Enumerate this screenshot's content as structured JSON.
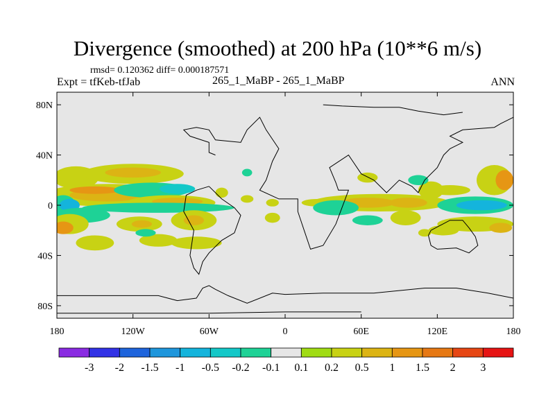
{
  "header": {
    "title": "Divergence (smoothed) at 200 hPa (10**6 m/s)",
    "stats": "rmsd= 0.120362 diff= 0.000187571",
    "expt": "Expt = tfKeb-tfJab",
    "case": "265_1_MaBP - 265_1_MaBP",
    "season": "ANN"
  },
  "chart_data": {
    "type": "heatmap",
    "background_color": "#e6e6e6",
    "xlim": [
      -180,
      180
    ],
    "ylim": [
      -90,
      90
    ],
    "x_ticks": [
      {
        "value": -180,
        "label": "180"
      },
      {
        "value": -120,
        "label": "120W"
      },
      {
        "value": -60,
        "label": "60W"
      },
      {
        "value": 0,
        "label": "0"
      },
      {
        "value": 60,
        "label": "60E"
      },
      {
        "value": 120,
        "label": "120E"
      },
      {
        "value": 180,
        "label": "180"
      }
    ],
    "y_ticks": [
      {
        "value": 80,
        "label": "80N"
      },
      {
        "value": 40,
        "label": "40N"
      },
      {
        "value": 0,
        "label": "0"
      },
      {
        "value": -40,
        "label": "40S"
      },
      {
        "value": -80,
        "label": "80S"
      }
    ],
    "colorbar": {
      "colors": [
        "#8a2be2",
        "#3232e6",
        "#1e64dc",
        "#1e96dc",
        "#14b4dc",
        "#14c8c8",
        "#1ed296",
        "#e6e6e6",
        "#a0dc14",
        "#c8d214",
        "#dcb414",
        "#e69614",
        "#e67814",
        "#e64614",
        "#e61414"
      ],
      "labels": [
        "-3",
        "-2",
        "-1.5",
        "-1",
        "-0.5",
        "-0.2",
        "-0.1",
        "0.1",
        "0.2",
        "0.5",
        "1",
        "1.5",
        "2",
        "3"
      ]
    },
    "regions": [
      {
        "lon": -165,
        "lat": 22,
        "w": 18,
        "h": 9,
        "level": "0.2"
      },
      {
        "lon": -120,
        "lat": 25,
        "w": 40,
        "h": 8,
        "level": "0.2"
      },
      {
        "lon": -120,
        "lat": 26,
        "w": 22,
        "h": 4,
        "level": "0.5"
      },
      {
        "lon": -140,
        "lat": 8,
        "w": 50,
        "h": 9,
        "level": "0.2"
      },
      {
        "lon": -140,
        "lat": 8,
        "w": 30,
        "h": 5,
        "level": "0.5"
      },
      {
        "lon": -150,
        "lat": 12,
        "w": 20,
        "h": 3,
        "level": "1"
      },
      {
        "lon": -105,
        "lat": 12,
        "w": 30,
        "h": 6,
        "level": "-0.1"
      },
      {
        "lon": -85,
        "lat": 13,
        "w": 14,
        "h": 4,
        "level": "-0.2"
      },
      {
        "lon": -175,
        "lat": 0,
        "w": 10,
        "h": 8,
        "level": "-0.1"
      },
      {
        "lon": -170,
        "lat": 0,
        "w": 8,
        "h": 5,
        "level": "-0.5"
      },
      {
        "lon": -90,
        "lat": 2,
        "w": 35,
        "h": 6,
        "level": "0.2"
      },
      {
        "lon": -85,
        "lat": 3,
        "w": 20,
        "h": 3,
        "level": "0.5"
      },
      {
        "lon": -100,
        "lat": -2,
        "w": 60,
        "h": 4,
        "level": "-0.1"
      },
      {
        "lon": -160,
        "lat": -8,
        "w": 22,
        "h": 6,
        "level": "-0.1"
      },
      {
        "lon": -170,
        "lat": -15,
        "w": 15,
        "h": 8,
        "level": "0.2"
      },
      {
        "lon": -175,
        "lat": -18,
        "w": 8,
        "h": 5,
        "level": "1"
      },
      {
        "lon": -115,
        "lat": -15,
        "w": 18,
        "h": 6,
        "level": "0.2"
      },
      {
        "lon": -113,
        "lat": -15,
        "w": 8,
        "h": 3,
        "level": "0.5"
      },
      {
        "lon": -72,
        "lat": -12,
        "w": 18,
        "h": 8,
        "level": "0.2"
      },
      {
        "lon": -72,
        "lat": -12,
        "w": 8,
        "h": 4,
        "level": "0.5"
      },
      {
        "lon": -150,
        "lat": -30,
        "w": 15,
        "h": 6,
        "level": "0.2"
      },
      {
        "lon": -100,
        "lat": -28,
        "w": 15,
        "h": 5,
        "level": "0.2"
      },
      {
        "lon": -70,
        "lat": -30,
        "w": 20,
        "h": 5,
        "level": "0.2"
      },
      {
        "lon": -110,
        "lat": -22,
        "w": 8,
        "h": 3,
        "level": "-0.1"
      },
      {
        "lon": -30,
        "lat": 26,
        "w": 4,
        "h": 3,
        "level": "-0.1"
      },
      {
        "lon": -50,
        "lat": 10,
        "w": 5,
        "h": 4,
        "level": "0.2"
      },
      {
        "lon": -30,
        "lat": 5,
        "w": 5,
        "h": 3,
        "level": "0.2"
      },
      {
        "lon": -10,
        "lat": 2,
        "w": 5,
        "h": 3,
        "level": "0.2"
      },
      {
        "lon": -10,
        "lat": -10,
        "w": 6,
        "h": 4,
        "level": "0.2"
      },
      {
        "lon": 25,
        "lat": 2,
        "w": 12,
        "h": 3,
        "level": "0.2"
      },
      {
        "lon": 75,
        "lat": 2,
        "w": 55,
        "h": 7,
        "level": "0.2"
      },
      {
        "lon": 65,
        "lat": 2,
        "w": 22,
        "h": 4,
        "level": "0.5"
      },
      {
        "lon": 97,
        "lat": 2,
        "w": 15,
        "h": 4,
        "level": "0.5"
      },
      {
        "lon": 40,
        "lat": -2,
        "w": 18,
        "h": 6,
        "level": "-0.1"
      },
      {
        "lon": 115,
        "lat": 12,
        "w": 10,
        "h": 7,
        "level": "0.2"
      },
      {
        "lon": 105,
        "lat": 20,
        "w": 8,
        "h": 4,
        "level": "-0.1"
      },
      {
        "lon": 65,
        "lat": 22,
        "w": 8,
        "h": 4,
        "level": "0.2"
      },
      {
        "lon": 95,
        "lat": -10,
        "w": 12,
        "h": 6,
        "level": "0.2"
      },
      {
        "lon": 65,
        "lat": -12,
        "w": 12,
        "h": 4,
        "level": "-0.1"
      },
      {
        "lon": 110,
        "lat": -22,
        "w": 5,
        "h": 3,
        "level": "0.2"
      },
      {
        "lon": 150,
        "lat": 0,
        "w": 30,
        "h": 7,
        "level": "-0.1"
      },
      {
        "lon": 155,
        "lat": 0,
        "w": 20,
        "h": 4,
        "level": "-0.5"
      },
      {
        "lon": 130,
        "lat": 12,
        "w": 16,
        "h": 4,
        "level": "0.2"
      },
      {
        "lon": 165,
        "lat": 20,
        "w": 14,
        "h": 12,
        "level": "0.2"
      },
      {
        "lon": 173,
        "lat": 20,
        "w": 7,
        "h": 8,
        "level": "1"
      },
      {
        "lon": 150,
        "lat": -15,
        "w": 30,
        "h": 6,
        "level": "0.2"
      },
      {
        "lon": 170,
        "lat": -18,
        "w": 9,
        "h": 4,
        "level": "0.5"
      },
      {
        "lon": 125,
        "lat": -20,
        "w": 12,
        "h": 4,
        "level": "0.2"
      }
    ],
    "coastlines": [
      [
        [
          -180,
          -72
        ],
        [
          -100,
          -72
        ],
        [
          -85,
          -76
        ],
        [
          -70,
          -74
        ],
        [
          -65,
          -66
        ],
        [
          -60,
          -64
        ],
        [
          -55,
          -67
        ],
        [
          -45,
          -72
        ],
        [
          -30,
          -78
        ],
        [
          -10,
          -70
        ],
        [
          0,
          -71
        ],
        [
          30,
          -70
        ],
        [
          70,
          -70
        ],
        [
          110,
          -66
        ],
        [
          135,
          -66
        ],
        [
          160,
          -70
        ],
        [
          170,
          -72
        ],
        [
          180,
          -74
        ]
      ],
      [
        [
          -180,
          -86
        ],
        [
          -60,
          -86
        ],
        [
          0,
          -85
        ],
        [
          60,
          -85
        ]
      ],
      [
        [
          -55,
          40
        ],
        [
          -60,
          42
        ],
        [
          -60,
          50
        ],
        [
          -75,
          55
        ],
        [
          -80,
          60
        ],
        [
          -70,
          62
        ],
        [
          -60,
          60
        ],
        [
          -55,
          52
        ],
        [
          -35,
          50
        ],
        [
          -30,
          60
        ],
        [
          -20,
          70
        ],
        [
          -15,
          60
        ],
        [
          -5,
          45
        ],
        [
          -10,
          35
        ],
        [
          -15,
          20
        ],
        [
          -20,
          12
        ],
        [
          -5,
          5
        ],
        [
          10,
          5
        ],
        [
          10,
          -5
        ],
        [
          15,
          -20
        ],
        [
          20,
          -35
        ],
        [
          30,
          -32
        ],
        [
          40,
          -15
        ],
        [
          50,
          12
        ],
        [
          42,
          12
        ],
        [
          40,
          18
        ],
        [
          35,
          30
        ],
        [
          50,
          40
        ],
        [
          60,
          25
        ],
        [
          70,
          20
        ],
        [
          80,
          10
        ],
        [
          90,
          20
        ],
        [
          100,
          15
        ],
        [
          105,
          10
        ],
        [
          110,
          20
        ],
        [
          120,
          30
        ],
        [
          125,
          40
        ],
        [
          130,
          45
        ],
        [
          140,
          50
        ],
        [
          130,
          55
        ],
        [
          140,
          60
        ],
        [
          165,
          62
        ],
        [
          170,
          65
        ],
        [
          180,
          70
        ]
      ],
      [
        [
          -60,
          15
        ],
        [
          -50,
          5
        ],
        [
          -40,
          -2
        ],
        [
          -35,
          -8
        ],
        [
          -40,
          -22
        ],
        [
          -50,
          -28
        ],
        [
          -60,
          -38
        ],
        [
          -65,
          -45
        ],
        [
          -68,
          -55
        ],
        [
          -72,
          -50
        ],
        [
          -75,
          -40
        ],
        [
          -72,
          -20
        ],
        [
          -80,
          -5
        ],
        [
          -78,
          8
        ],
        [
          -70,
          12
        ],
        [
          -60,
          15
        ]
      ],
      [
        [
          115,
          -20
        ],
        [
          130,
          -12
        ],
        [
          140,
          -12
        ],
        [
          145,
          -18
        ],
        [
          150,
          -25
        ],
        [
          152,
          -32
        ],
        [
          145,
          -38
        ],
        [
          135,
          -34
        ],
        [
          120,
          -35
        ],
        [
          115,
          -32
        ],
        [
          113,
          -24
        ],
        [
          115,
          -20
        ]
      ],
      [
        [
          30,
          80
        ],
        [
          45,
          79
        ],
        [
          70,
          78
        ],
        [
          90,
          78
        ],
        [
          105,
          75
        ],
        [
          125,
          72
        ],
        [
          140,
          74
        ]
      ]
    ]
  }
}
